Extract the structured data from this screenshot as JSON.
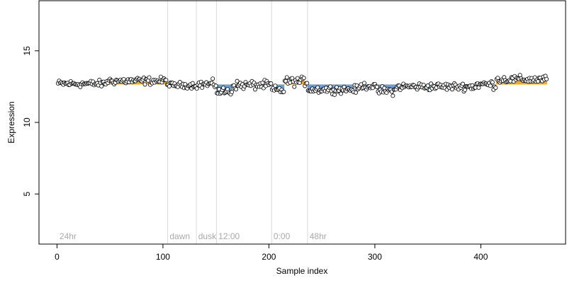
{
  "chart_data": {
    "type": "scatter",
    "xlabel": "Sample index",
    "ylabel": "Expression",
    "xlim": [
      -17,
      480
    ],
    "ylim": [
      1.5,
      18.5
    ],
    "xticks": [
      0,
      100,
      200,
      300,
      400
    ],
    "yticks": [
      5,
      10,
      15
    ],
    "baseline": 12.65,
    "colors": {
      "above": "#f5a623",
      "below": "#6c9bd2",
      "divider": "#d9d9d9",
      "label": "#a8a8a8"
    },
    "groups": [
      {
        "label": "24hr",
        "start": 1
      },
      {
        "label": "dawn",
        "start": 105
      },
      {
        "label": "dusk",
        "start": 132
      },
      {
        "label": "12:00",
        "start": 151
      },
      {
        "label": "0:00",
        "start": 203
      },
      {
        "label": "48hr",
        "start": 237
      }
    ],
    "segments": [
      {
        "from": 1,
        "to": 46,
        "mean": 12.7,
        "noise": 0.12
      },
      {
        "from": 47,
        "to": 104,
        "mean": 12.9,
        "noise": 0.13
      },
      {
        "from": 105,
        "to": 131,
        "mean": 12.6,
        "noise": 0.1
      },
      {
        "from": 132,
        "to": 150,
        "mean": 12.65,
        "noise": 0.15
      },
      {
        "from": 151,
        "to": 165,
        "mean": 12.15,
        "noise": 0.15
      },
      {
        "from": 166,
        "to": 202,
        "mean": 12.6,
        "noise": 0.15
      },
      {
        "from": 203,
        "to": 214,
        "mean": 12.25,
        "noise": 0.15
      },
      {
        "from": 215,
        "to": 236,
        "mean": 12.85,
        "noise": 0.15
      },
      {
        "from": 237,
        "to": 285,
        "mean": 12.3,
        "noise": 0.13
      },
      {
        "from": 286,
        "to": 300,
        "mean": 12.55,
        "noise": 0.12
      },
      {
        "from": 301,
        "to": 320,
        "mean": 12.2,
        "noise": 0.15
      },
      {
        "from": 321,
        "to": 395,
        "mean": 12.5,
        "noise": 0.13
      },
      {
        "from": 396,
        "to": 414,
        "mean": 12.65,
        "noise": 0.15
      },
      {
        "from": 415,
        "to": 462,
        "mean": 13.0,
        "noise": 0.13
      }
    ]
  }
}
